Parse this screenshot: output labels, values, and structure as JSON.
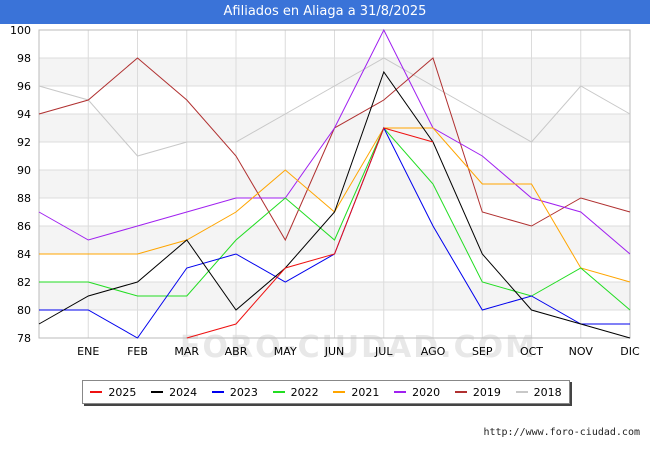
{
  "header": {
    "title": "Afiliados en Aliaga a 31/8/2025"
  },
  "footer": {
    "url": "http://www.foro-ciudad.com"
  },
  "watermark": "FORO-CIUDAD.COM",
  "chart_data": {
    "type": "line",
    "title": "Afiliados en Aliaga a 31/8/2025",
    "xlabel": "",
    "ylabel": "",
    "ylim": [
      78,
      100
    ],
    "yticks": [
      78,
      80,
      82,
      84,
      86,
      88,
      90,
      92,
      94,
      96,
      98,
      100
    ],
    "categories": [
      "",
      "ENE",
      "FEB",
      "MAR",
      "ABR",
      "MAY",
      "JUN",
      "JUL",
      "AGO",
      "SEP",
      "OCT",
      "NOV",
      "DIC"
    ],
    "grid": true,
    "legend_position": "bottom",
    "series": [
      {
        "name": "2018",
        "color": "#c8c8c8",
        "values": [
          96,
          95,
          91,
          92,
          92,
          94,
          96,
          98,
          96,
          94,
          92,
          96,
          94
        ]
      },
      {
        "name": "2019",
        "color": "#b03030",
        "values": [
          94,
          95,
          98,
          95,
          91,
          85,
          93,
          95,
          98,
          87,
          86,
          88,
          87
        ]
      },
      {
        "name": "2020",
        "color": "#a020f0",
        "values": [
          87,
          85,
          86,
          87,
          88,
          88,
          93,
          100,
          93,
          91,
          88,
          87,
          84
        ]
      },
      {
        "name": "2021",
        "color": "#ffa500",
        "values": [
          84,
          84,
          84,
          85,
          87,
          90,
          87,
          93,
          93,
          89,
          89,
          83,
          82
        ]
      },
      {
        "name": "2022",
        "color": "#22dd22",
        "values": [
          82,
          82,
          81,
          81,
          85,
          88,
          85,
          93,
          89,
          82,
          81,
          83,
          80
        ]
      },
      {
        "name": "2023",
        "color": "#0000ee",
        "values": [
          80,
          80,
          78,
          83,
          84,
          82,
          84,
          93,
          86,
          80,
          81,
          79,
          79
        ]
      },
      {
        "name": "2024",
        "color": "#000000",
        "values": [
          79,
          81,
          82,
          85,
          80,
          83,
          87,
          97,
          92,
          84,
          80,
          79,
          78
        ]
      },
      {
        "name": "2025",
        "color": "#ee1111",
        "values": [
          null,
          null,
          null,
          78,
          79,
          83,
          84,
          93,
          92,
          null,
          null,
          null,
          null
        ]
      }
    ],
    "legend_order": [
      "2025",
      "2024",
      "2023",
      "2022",
      "2021",
      "2020",
      "2019",
      "2018"
    ]
  }
}
